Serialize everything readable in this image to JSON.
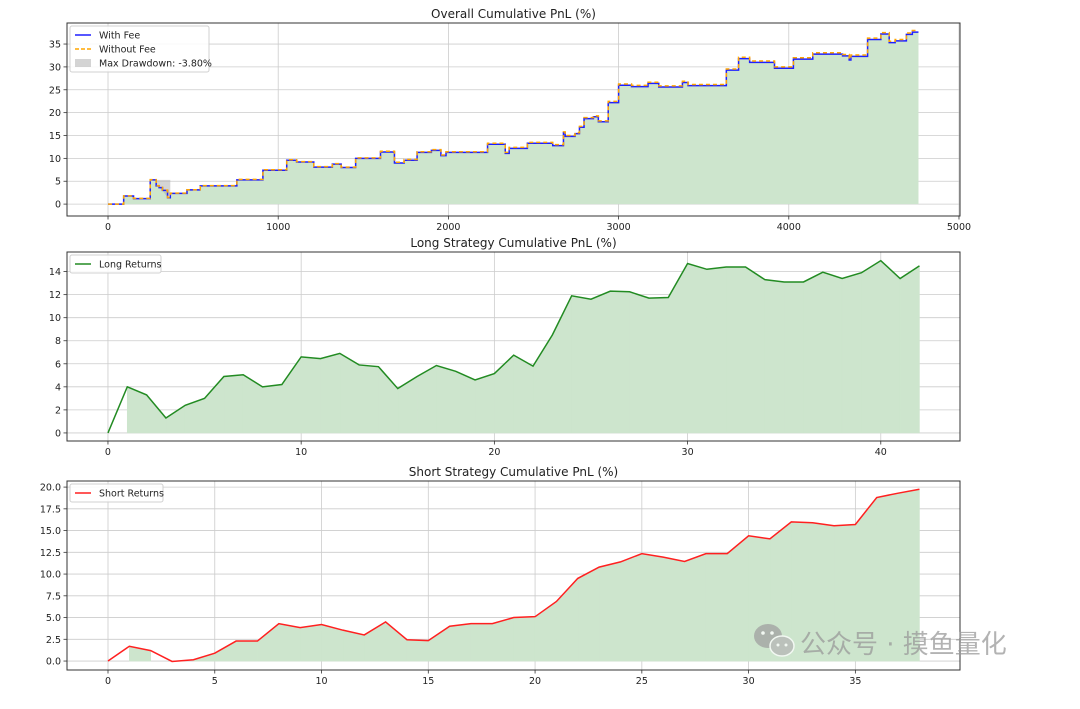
{
  "colors": {
    "with_fee": "#1f1fff",
    "without_fee": "#ffa500",
    "long": "#228b22",
    "short": "#ff2020",
    "fill": "#cde5cd",
    "drawdown": "#a9a9a9",
    "grid": "#cccccc"
  },
  "watermark": {
    "text": "公众号 · 摸鱼量化",
    "icon": "wechat-icon"
  },
  "chart_data": [
    {
      "type": "line",
      "style": "step",
      "title": "Overall Cumulative PnL (%)",
      "xlabel": "",
      "ylabel": "",
      "xlim": [
        -241,
        5006
      ],
      "ylim": [
        -2.6,
        39.6
      ],
      "xticks": [
        0,
        1000,
        2000,
        3000,
        4000,
        5000
      ],
      "xtick_labels": [
        "0",
        "1000",
        "2000",
        "3000",
        "4000",
        "5000"
      ],
      "yticks": [
        0,
        5,
        10,
        15,
        20,
        25,
        30,
        35
      ],
      "ytick_labels": [
        "0",
        "5",
        "10",
        "15",
        "20",
        "25",
        "30",
        "35"
      ],
      "grid": true,
      "legend_position": "top-left",
      "x": [
        0,
        92,
        150,
        248,
        283,
        300,
        320,
        350,
        366,
        464,
        542,
        757,
        910,
        1050,
        1108,
        1209,
        1318,
        1370,
        1455,
        1601,
        1683,
        1740,
        1816,
        1900,
        1956,
        1986,
        2230,
        2334,
        2357,
        2464,
        2613,
        2676,
        2686,
        2744,
        2770,
        2797,
        2852,
        2881,
        2939,
        3000,
        3076,
        3173,
        3236,
        3375,
        3408,
        3633,
        3705,
        3770,
        3916,
        4027,
        4141,
        4316,
        4355,
        4365,
        4463,
        4541,
        4590,
        4625,
        4691,
        4726,
        4762
      ],
      "series": [
        {
          "name": "With Fee",
          "values": [
            0,
            1.76,
            1.2,
            5.3,
            4.0,
            3.6,
            3.0,
            1.4,
            2.35,
            3.1,
            4.0,
            5.3,
            7.4,
            9.6,
            9.2,
            8.1,
            8.75,
            8.0,
            10.0,
            11.4,
            9.0,
            9.6,
            11.3,
            11.75,
            10.6,
            11.3,
            13.1,
            11.1,
            12.2,
            13.3,
            12.8,
            15.6,
            14.8,
            15.4,
            16.8,
            18.7,
            19.1,
            18.0,
            22.2,
            26.0,
            25.7,
            26.4,
            25.6,
            26.6,
            25.9,
            29.3,
            31.8,
            31.0,
            29.7,
            31.7,
            32.8,
            32.4,
            31.5,
            32.3,
            36.0,
            37.2,
            35.3,
            35.7,
            37.1,
            37.6,
            37.6
          ]
        },
        {
          "name": "Without Fee",
          "values": [
            0,
            1.8,
            1.25,
            5.35,
            4.05,
            3.65,
            3.05,
            1.45,
            2.4,
            3.15,
            4.05,
            5.4,
            7.5,
            9.7,
            9.3,
            8.2,
            8.85,
            8.1,
            10.1,
            11.55,
            9.15,
            9.75,
            11.45,
            11.9,
            10.75,
            11.45,
            13.3,
            11.3,
            12.4,
            13.5,
            13.0,
            15.8,
            15.0,
            15.6,
            17.0,
            18.9,
            19.3,
            18.2,
            22.45,
            26.25,
            25.95,
            26.65,
            25.85,
            26.85,
            26.15,
            29.55,
            32.1,
            31.3,
            30.0,
            32.0,
            33.1,
            32.7,
            31.8,
            32.6,
            36.3,
            37.5,
            35.6,
            36.0,
            37.4,
            37.95,
            37.95
          ]
        }
      ],
      "drawdown": {
        "label": "Max Drawdown: -3.80%",
        "start": 283,
        "end": 366,
        "peak": 5.3
      }
    },
    {
      "type": "line",
      "title": "Long Strategy Cumulative PnL (%)",
      "xlabel": "",
      "ylabel": "",
      "xlim": [
        -2.12,
        44.1
      ],
      "ylim": [
        -0.7,
        15.7
      ],
      "xticks": [
        0,
        10,
        20,
        30,
        40
      ],
      "xtick_labels": [
        "0",
        "10",
        "20",
        "30",
        "40"
      ],
      "yticks": [
        0,
        2,
        4,
        6,
        8,
        10,
        12,
        14
      ],
      "ytick_labels": [
        "0",
        "2",
        "4",
        "6",
        "8",
        "10",
        "12",
        "14"
      ],
      "grid": true,
      "legend_position": "top-left",
      "x": [
        0,
        1,
        2,
        3,
        4,
        5,
        6,
        7,
        8,
        9,
        10,
        11,
        12,
        13,
        14,
        15,
        16,
        17,
        18,
        19,
        20,
        21,
        22,
        23,
        24,
        25,
        26,
        27,
        28,
        29,
        30,
        31,
        32,
        33,
        34,
        35,
        36,
        37,
        38,
        39,
        40,
        41,
        42
      ],
      "series": [
        {
          "name": "Long Returns",
          "values": [
            0,
            4.0,
            3.3,
            1.3,
            2.4,
            3.0,
            4.9,
            5.05,
            4.0,
            4.2,
            6.6,
            6.45,
            6.9,
            5.9,
            5.75,
            3.85,
            4.9,
            5.85,
            5.35,
            4.6,
            5.15,
            6.75,
            5.8,
            8.5,
            11.9,
            11.6,
            12.3,
            12.25,
            11.7,
            11.75,
            14.7,
            14.2,
            14.4,
            14.4,
            13.3,
            13.1,
            13.1,
            13.95,
            13.4,
            13.9,
            14.95,
            13.4,
            14.5
          ]
        }
      ]
    },
    {
      "type": "line",
      "title": "Short Strategy Cumulative PnL (%)",
      "xlabel": "",
      "ylabel": "",
      "xlim": [
        -1.92,
        39.9
      ],
      "ylim": [
        -1.03,
        20.7
      ],
      "xticks": [
        0,
        5,
        10,
        15,
        20,
        25,
        30,
        35
      ],
      "xtick_labels": [
        "0",
        "5",
        "10",
        "15",
        "20",
        "25",
        "30",
        "35"
      ],
      "yticks": [
        0,
        2.5,
        5,
        7.5,
        10,
        12.5,
        15,
        17.5,
        20
      ],
      "ytick_labels": [
        "0.0",
        "2.5",
        "5.0",
        "7.5",
        "10.0",
        "12.5",
        "15.0",
        "17.5",
        "20.0"
      ],
      "grid": true,
      "legend_position": "top-left",
      "x": [
        0,
        1,
        2,
        3,
        4,
        5,
        6,
        7,
        8,
        9,
        10,
        11,
        12,
        13,
        14,
        15,
        16,
        17,
        18,
        19,
        20,
        21,
        22,
        23,
        24,
        25,
        26,
        27,
        28,
        29,
        30,
        31,
        32,
        33,
        34,
        35,
        36,
        37,
        38
      ],
      "series": [
        {
          "name": "Short Returns",
          "values": [
            0,
            1.7,
            1.2,
            -0.05,
            0.15,
            0.9,
            2.3,
            2.3,
            4.3,
            3.85,
            4.2,
            3.55,
            3.0,
            4.5,
            2.45,
            2.35,
            4.0,
            4.3,
            4.3,
            5.0,
            5.1,
            6.85,
            9.5,
            10.8,
            11.4,
            12.35,
            11.95,
            11.45,
            12.35,
            12.35,
            14.4,
            14.05,
            16.0,
            15.9,
            15.55,
            15.7,
            18.8,
            19.3,
            19.75
          ]
        }
      ]
    }
  ]
}
